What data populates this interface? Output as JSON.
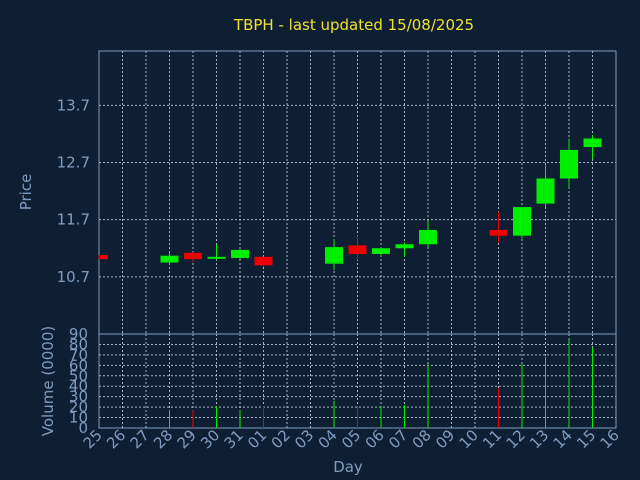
{
  "chart_data": {
    "type": "candlestick",
    "title": "TBPH - last updated 15/08/2025",
    "xlabel": "Day",
    "ylabel_price": "Price",
    "ylabel_volume": "Volume (0000)",
    "categories": [
      "25",
      "26",
      "27",
      "28",
      "29",
      "30",
      "31",
      "01",
      "02",
      "03",
      "04",
      "05",
      "06",
      "07",
      "08",
      "09",
      "10",
      "11",
      "12",
      "13",
      "14",
      "15",
      "16"
    ],
    "price_ylim": [
      9.7,
      14.65
    ],
    "price_yticks": [
      "10.7",
      "11.7",
      "12.7",
      "13.7"
    ],
    "volume_ylim": [
      0,
      90
    ],
    "volume_yticks": [
      "0",
      "10",
      "20",
      "30",
      "40",
      "50",
      "60",
      "70",
      "80",
      "90"
    ],
    "grid": true,
    "colors": {
      "up": "#00ee00",
      "down": "#ee0000",
      "title": "#f0e130",
      "axis": "#7f9cc0",
      "background": "#0f1f33"
    },
    "candles": [
      {
        "day": "25",
        "open": 11.08,
        "high": 11.08,
        "low": 11.01,
        "close": 11.01,
        "volume": 0
      },
      {
        "day": "28",
        "open": 10.95,
        "high": 11.13,
        "low": 10.93,
        "close": 11.07,
        "volume": 17
      },
      {
        "day": "29",
        "open": 11.12,
        "high": 11.13,
        "low": 10.95,
        "close": 11.01,
        "volume": 17
      },
      {
        "day": "30",
        "open": 11.02,
        "high": 11.26,
        "low": 10.99,
        "close": 11.05,
        "volume": 21
      },
      {
        "day": "31",
        "open": 11.03,
        "high": 11.18,
        "low": 11.01,
        "close": 11.17,
        "volume": 17
      },
      {
        "day": "01",
        "open": 11.05,
        "high": 11.05,
        "low": 10.88,
        "close": 10.9,
        "volume": 21
      },
      {
        "day": "04",
        "open": 10.93,
        "high": 11.36,
        "low": 10.82,
        "close": 11.22,
        "volume": 26
      },
      {
        "day": "05",
        "open": 11.25,
        "high": 11.42,
        "low": 10.99,
        "close": 11.1,
        "volume": 21
      },
      {
        "day": "06",
        "open": 11.1,
        "high": 11.22,
        "low": 11.06,
        "close": 11.2,
        "volume": 21
      },
      {
        "day": "07",
        "open": 11.2,
        "high": 11.3,
        "low": 11.05,
        "close": 11.27,
        "volume": 22
      },
      {
        "day": "08",
        "open": 11.27,
        "high": 11.68,
        "low": 11.22,
        "close": 11.52,
        "volume": 61
      },
      {
        "day": "11",
        "open": 11.52,
        "high": 11.84,
        "low": 11.3,
        "close": 11.42,
        "volume": 38
      },
      {
        "day": "12",
        "open": 11.42,
        "high": 11.92,
        "low": 11.37,
        "close": 11.92,
        "volume": 61
      },
      {
        "day": "13",
        "open": 11.98,
        "high": 12.65,
        "low": 11.92,
        "close": 12.42,
        "volume": 68
      },
      {
        "day": "14",
        "open": 12.42,
        "high": 13.12,
        "low": 12.26,
        "close": 12.92,
        "volume": 85
      },
      {
        "day": "15",
        "open": 12.97,
        "high": 13.18,
        "low": 12.76,
        "close": 13.12,
        "volume": 77
      }
    ]
  }
}
